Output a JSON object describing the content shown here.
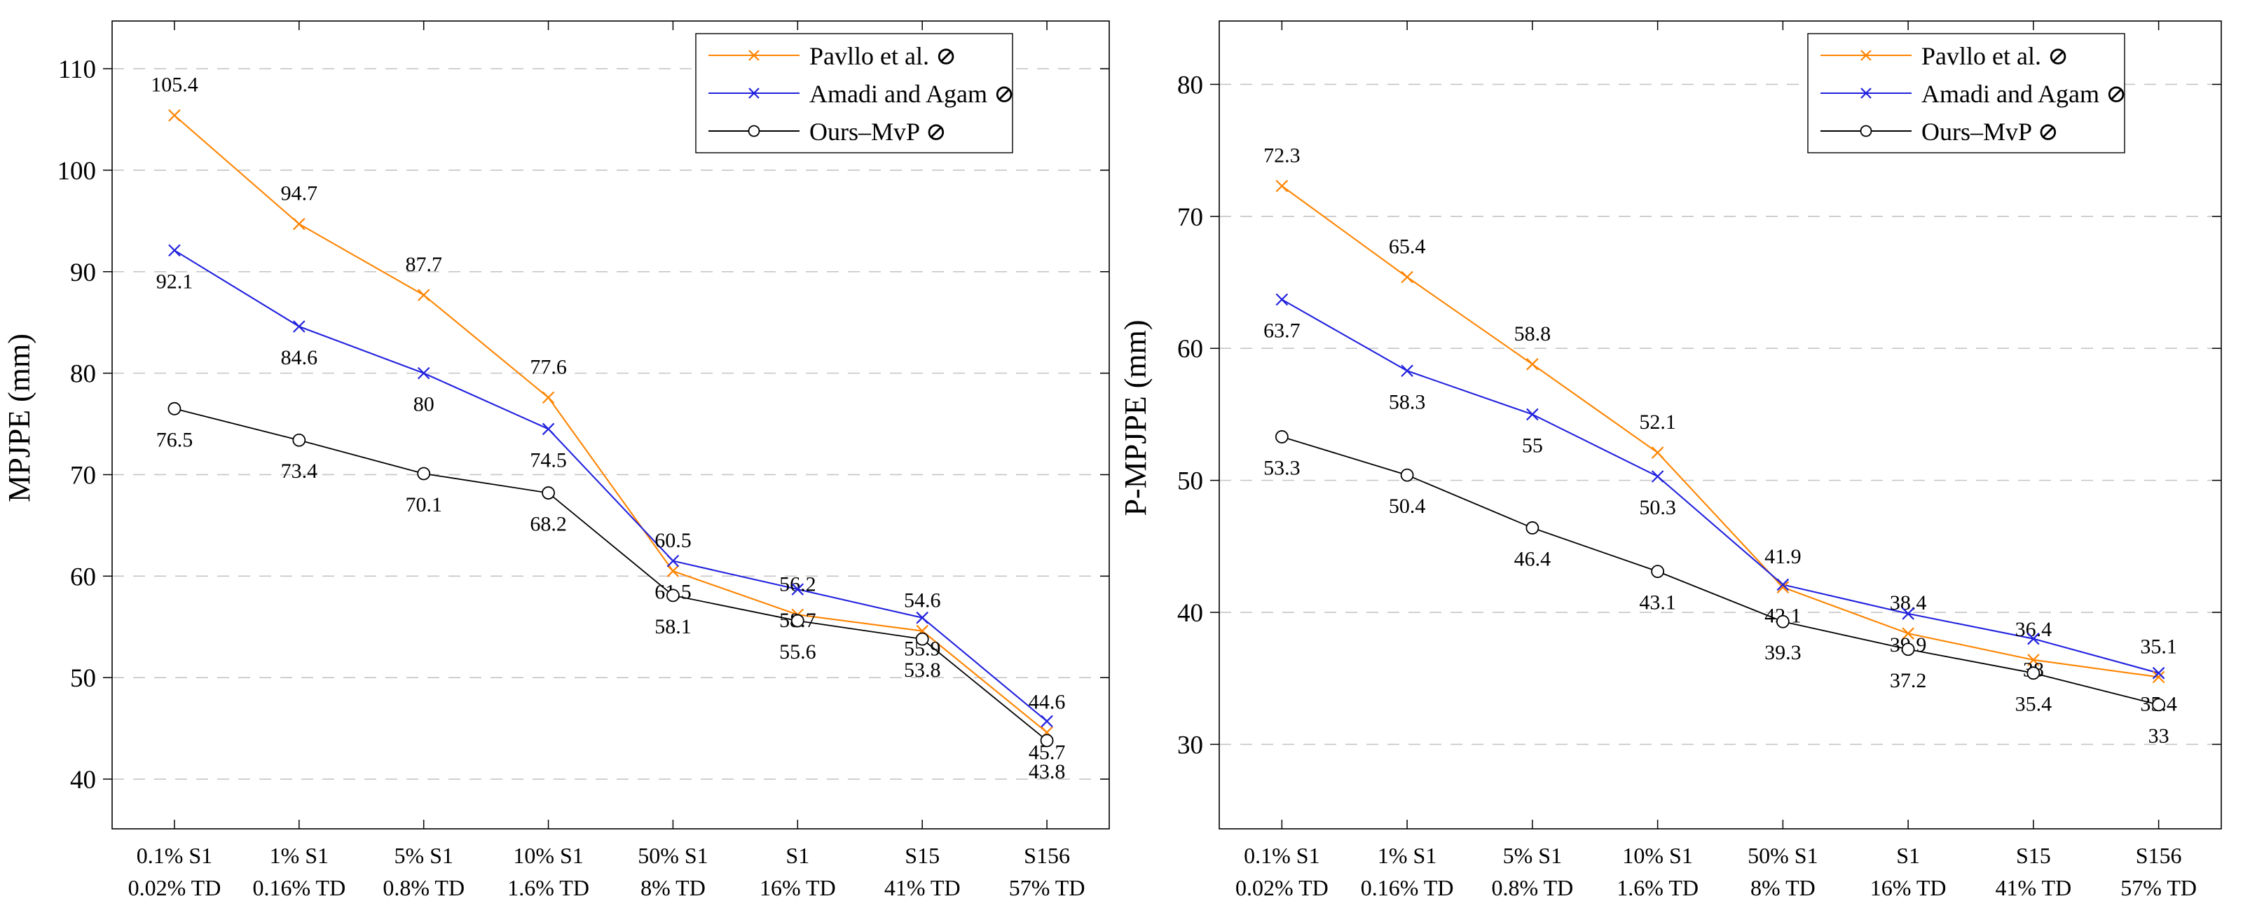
{
  "figure": {
    "background": "#ffffff",
    "grid": "horizontal-dashed",
    "legend_position": "top-right-inside"
  },
  "chart_data": [
    {
      "type": "line",
      "title": "",
      "xlabel": "",
      "ylabel": "MPJPE (mm)",
      "ylim": [
        35.1,
        114.7
      ],
      "yticks": [
        40,
        50,
        60,
        70,
        80,
        90,
        100,
        110
      ],
      "grid": "horizontal-dashed",
      "legend_position": "top-right",
      "categories_line1": [
        "0.1% S1",
        "1% S1",
        "5% S1",
        "10% S1",
        "50% S1",
        "S1",
        "S15",
        "S156"
      ],
      "categories_line2": [
        "0.02% TD",
        "0.16% TD",
        "0.8% TD",
        "1.6% TD",
        "8% TD",
        "16% TD",
        "41% TD",
        "57% TD"
      ],
      "series": [
        {
          "name": "Pavllo et al. ⊘",
          "color": "#ff8400",
          "marker": "x",
          "label_side": "above",
          "values": [
            105.4,
            94.7,
            87.7,
            77.6,
            60.5,
            56.2,
            54.6,
            44.6
          ]
        },
        {
          "name": "Amadi and Agam ⊘",
          "color": "#2121de",
          "marker": "x",
          "label_side": "below",
          "values": [
            92.1,
            84.6,
            80,
            74.5,
            61.5,
            58.7,
            55.9,
            45.7
          ]
        },
        {
          "name": "Ours–MvP ⊘",
          "color": "#000000",
          "marker": "o",
          "label_side": "below",
          "values": [
            76.5,
            73.4,
            70.1,
            68.2,
            58.1,
            55.6,
            53.8,
            43.8
          ]
        }
      ]
    },
    {
      "type": "line",
      "title": "",
      "xlabel": "",
      "ylabel": "P-MPJPE (mm)",
      "ylim": [
        23.6,
        84.8
      ],
      "yticks": [
        30,
        40,
        50,
        60,
        70,
        80
      ],
      "grid": "horizontal-dashed",
      "legend_position": "top-right",
      "categories_line1": [
        "0.1% S1",
        "1% S1",
        "5% S1",
        "10% S1",
        "50% S1",
        "S1",
        "S15",
        "S156"
      ],
      "categories_line2": [
        "0.02% TD",
        "0.16% TD",
        "0.8% TD",
        "1.6% TD",
        "8% TD",
        "16% TD",
        "41% TD",
        "57% TD"
      ],
      "series": [
        {
          "name": "Pavllo et al. ⊘",
          "color": "#ff8400",
          "marker": "x",
          "label_side": "above",
          "values": [
            72.3,
            65.4,
            58.8,
            52.1,
            41.9,
            38.4,
            36.4,
            35.1
          ]
        },
        {
          "name": "Amadi and Agam ⊘",
          "color": "#2121de",
          "marker": "x",
          "label_side": "below",
          "values": [
            63.7,
            58.3,
            55,
            50.3,
            42.1,
            39.9,
            38,
            35.4
          ]
        },
        {
          "name": "Ours–MvP ⊘",
          "color": "#000000",
          "marker": "o",
          "label_side": "below",
          "values": [
            53.3,
            50.4,
            46.4,
            43.1,
            39.3,
            37.2,
            35.4,
            33
          ]
        }
      ]
    }
  ]
}
